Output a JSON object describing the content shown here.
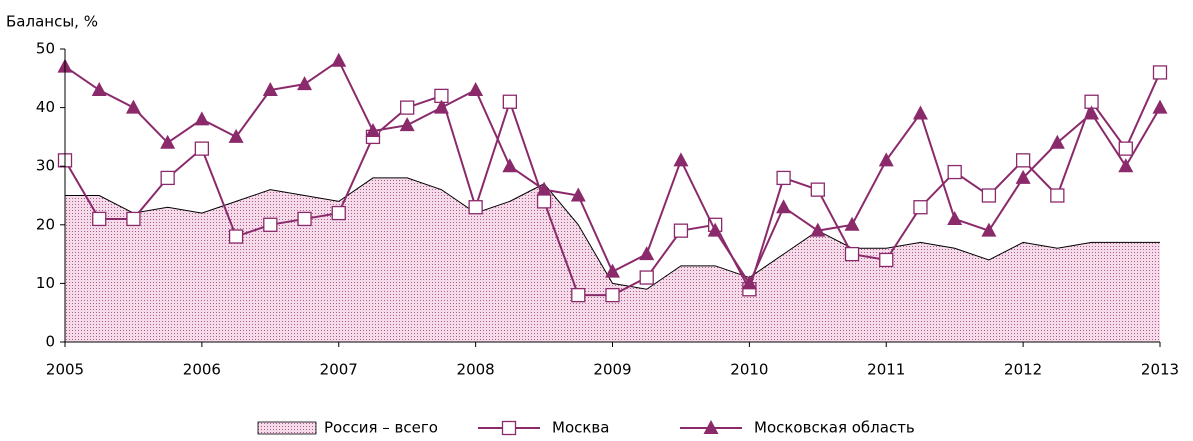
{
  "chart_data": {
    "type": "line",
    "ylabel": "Балансы, %",
    "x": [
      2005,
      2005.25,
      2005.5,
      2005.75,
      2006,
      2006.25,
      2006.5,
      2006.75,
      2007,
      2007.25,
      2007.5,
      2007.75,
      2008,
      2008.25,
      2008.5,
      2008.75,
      2009,
      2009.25,
      2009.5,
      2009.75,
      2010,
      2010.25,
      2010.5,
      2010.75,
      2011,
      2011.25,
      2011.5,
      2011.75,
      2012,
      2012.25,
      2012.5,
      2012.75,
      2013
    ],
    "xlim": [
      2005,
      2013
    ],
    "xticks": [
      2005,
      2006,
      2007,
      2008,
      2009,
      2010,
      2011,
      2012,
      2013
    ],
    "ylim": [
      0,
      50
    ],
    "yticks": [
      0,
      10,
      20,
      30,
      40,
      50
    ],
    "series": [
      {
        "name": "Россия –  всего",
        "color": "#e8bcd3",
        "area": true,
        "values": [
          25,
          25,
          22,
          23,
          22,
          24,
          26,
          25,
          24,
          28,
          28,
          26,
          22,
          24,
          27,
          20,
          10,
          9,
          13,
          13,
          11,
          15,
          19,
          16,
          16,
          17,
          16,
          14,
          17,
          16,
          17,
          17,
          17
        ]
      },
      {
        "name": "Москва",
        "color": "#8b2a6b",
        "marker": "square",
        "values": [
          31,
          21,
          21,
          28,
          33,
          18,
          20,
          21,
          22,
          35,
          40,
          42,
          23,
          41,
          24,
          8,
          8,
          11,
          19,
          20,
          9,
          28,
          26,
          15,
          14,
          23,
          29,
          25,
          31,
          25,
          41,
          33,
          46
        ]
      },
      {
        "name": "Московская область",
        "color": "#8b2a6b",
        "marker": "triangle",
        "values": [
          47,
          43,
          40,
          34,
          38,
          35,
          43,
          44,
          48,
          36,
          37,
          40,
          43,
          30,
          26,
          25,
          12,
          15,
          31,
          19,
          10,
          23,
          19,
          20,
          31,
          39,
          21,
          19,
          28,
          34,
          39,
          30,
          40
        ]
      }
    ]
  }
}
